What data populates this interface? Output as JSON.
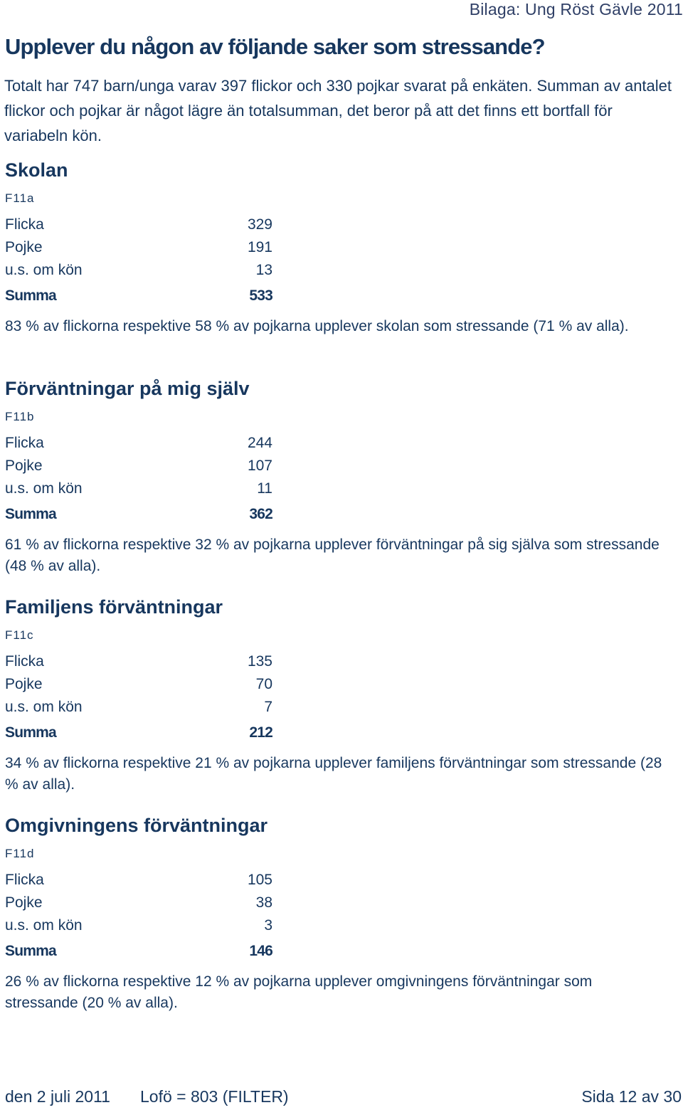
{
  "header": {
    "attachment": "Bilaga: Ung Röst Gävle 2011"
  },
  "title": "Upplever du någon av följande saker som stressande?",
  "intro": "Totalt har 747 barn/unga varav 397 flickor och 330 pojkar svarat på enkäten. Summan av antalet flickor och pojkar är något lägre än totalsumman, det beror på att det finns ett bortfall för variabeln kön.",
  "sections": [
    {
      "title": "Skolan",
      "code": "F11a",
      "rows": [
        {
          "label": "Flicka",
          "value": "329"
        },
        {
          "label": "Pojke",
          "value": "191"
        },
        {
          "label": "u.s. om kön",
          "value": "13"
        },
        {
          "label": "Summa",
          "value": "533"
        }
      ],
      "summary": "83 % av flickorna respektive 58 % av pojkarna upplever skolan som stressande (71 % av alla)."
    },
    {
      "title": "Förväntningar på mig själv",
      "code": "F11b",
      "rows": [
        {
          "label": "Flicka",
          "value": "244"
        },
        {
          "label": "Pojke",
          "value": "107"
        },
        {
          "label": "u.s. om kön",
          "value": "11"
        },
        {
          "label": "Summa",
          "value": "362"
        }
      ],
      "summary": "61 % av flickorna respektive 32 % av pojkarna upplever förväntningar på sig själva som stressande (48 % av alla)."
    },
    {
      "title": "Familjens förväntningar",
      "code": "F11c",
      "rows": [
        {
          "label": "Flicka",
          "value": "135"
        },
        {
          "label": "Pojke",
          "value": "70"
        },
        {
          "label": "u.s. om kön",
          "value": "7"
        },
        {
          "label": "Summa",
          "value": "212"
        }
      ],
      "summary": "34 % av flickorna respektive 21 % av pojkarna upplever familjens förväntningar som stressande (28 % av alla)."
    },
    {
      "title": "Omgivningens förväntningar",
      "code": "F11d",
      "rows": [
        {
          "label": "Flicka",
          "value": "105"
        },
        {
          "label": "Pojke",
          "value": "38"
        },
        {
          "label": "u.s. om kön",
          "value": "3"
        },
        {
          "label": "Summa",
          "value": "146"
        }
      ],
      "summary": "26 % av flickorna respektive 12 % av pojkarna upplever omgivningens förväntningar som stressande (20 % av alla)."
    }
  ],
  "footer": {
    "date": "den 2 juli 2011",
    "filter": "Lofö = 803 (FILTER)",
    "page": "Sida 12 av 30"
  }
}
